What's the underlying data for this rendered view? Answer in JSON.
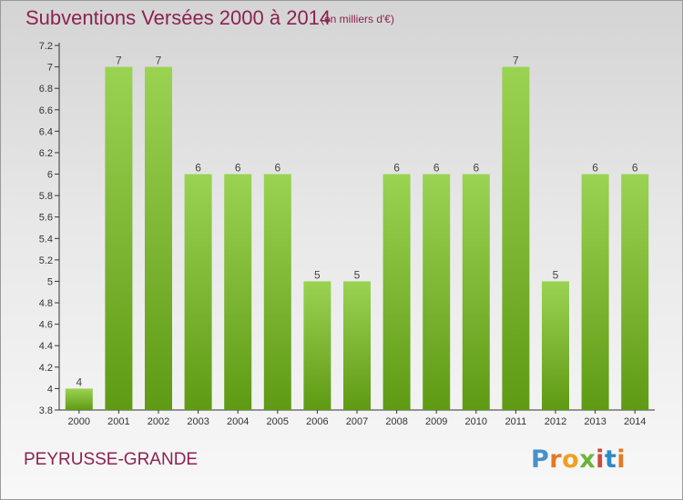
{
  "chart_data": {
    "type": "bar",
    "title": "Subventions Versées 2000 à 2014",
    "subtitle": "(en milliers d'€)",
    "categories": [
      "2000",
      "2001",
      "2002",
      "2003",
      "2004",
      "2005",
      "2006",
      "2007",
      "2008",
      "2009",
      "2010",
      "2011",
      "2012",
      "2013",
      "2014"
    ],
    "values": [
      4,
      7,
      7,
      6,
      6,
      6,
      5,
      5,
      6,
      6,
      6,
      7,
      5,
      6,
      6
    ],
    "value_labels": [
      "4",
      "7",
      "7",
      "6",
      "6",
      "6",
      "5",
      "5",
      "6",
      "6",
      "6",
      "7",
      "5",
      "6",
      "6"
    ],
    "y_tick_labels": [
      "3.8",
      "4",
      "4.2",
      "4.4",
      "4.6",
      "4.8",
      "5",
      "5.2",
      "5.4",
      "5.6",
      "5.8",
      "6",
      "6.2",
      "6.4",
      "6.6",
      "6.8",
      "7",
      "7.2"
    ],
    "y_tick_values": [
      3.8,
      4.0,
      4.2,
      4.4,
      4.6,
      4.8,
      5.0,
      5.2,
      5.4,
      5.6,
      5.8,
      6.0,
      6.2,
      6.4,
      6.6,
      6.8,
      7.0,
      7.2
    ],
    "ylim": [
      3.8,
      7.2
    ],
    "xlabel": "",
    "ylabel": "",
    "grid": false,
    "bar_color_top": "#9ad352",
    "bar_color_bottom": "#5f9a14"
  },
  "commune": "PEYRUSSE-GRANDE",
  "logo": {
    "text": "Proxiti",
    "letters": [
      "P",
      "r",
      "o",
      "x",
      "i",
      "t",
      "i"
    ]
  }
}
